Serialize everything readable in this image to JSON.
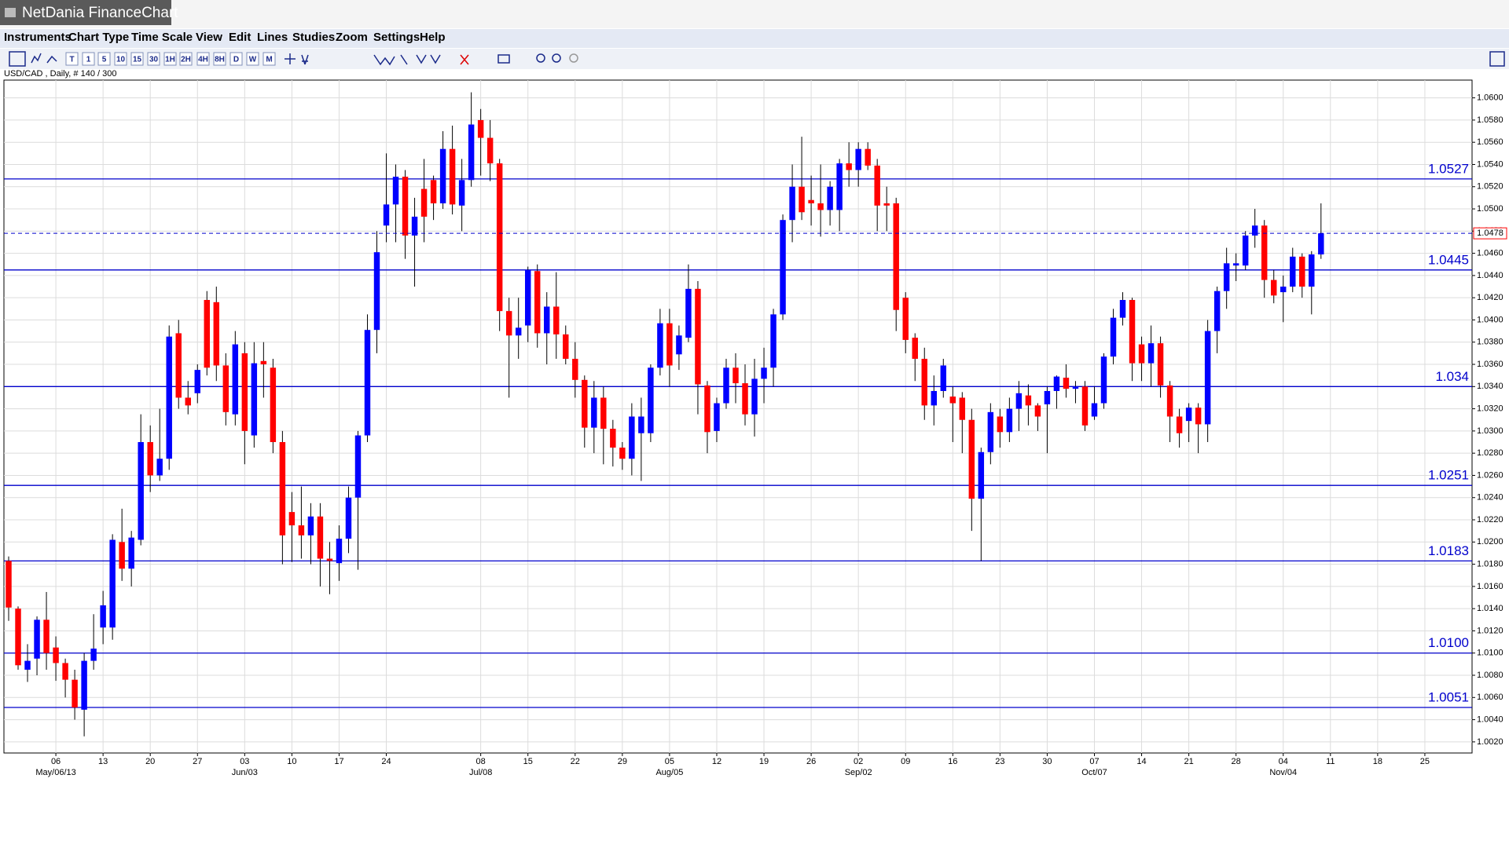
{
  "window": {
    "title": "NetDania FinanceChart"
  },
  "menu": [
    "Instruments",
    "Chart Type",
    "Time Scale",
    "View",
    "Edit",
    "Lines",
    "Studies",
    "Zoom",
    "Settings",
    "Help"
  ],
  "toolbar": [
    "T",
    "1",
    "5",
    "10",
    "15",
    "30",
    "1H",
    "2H",
    "4H",
    "8H",
    "D",
    "W",
    "M"
  ],
  "chart_data": {
    "type": "candlestick",
    "title": "USD/CAD , Daily, # 140 / 300",
    "up_color": "#0000ff",
    "down_color": "#ff0000",
    "wick_color": "#000000",
    "level_color": "#0000cc",
    "grid": true,
    "open": [
      1.0183,
      1.014,
      1.0085,
      1.0095,
      1.013,
      1.0105,
      1.0091,
      1.0076,
      1.0049,
      1.0093,
      1.0123,
      1.0123,
      1.02,
      1.0176,
      1.0202,
      1.029,
      1.026,
      1.0275,
      1.0388,
      1.033,
      1.0334,
      1.0418,
      1.0416,
      1.0359,
      1.0315,
      1.037,
      1.0296,
      1.0363,
      1.0357,
      1.029,
      1.0227,
      1.0215,
      1.0206,
      1.0223,
      1.0185,
      1.0181,
      1.0203,
      1.024,
      1.0296,
      1.0391,
      1.0485,
      1.0504,
      1.0529,
      1.0476,
      1.0518,
      1.0526,
      1.0505,
      1.0554,
      1.0503,
      1.0526,
      1.058,
      1.0564,
      1.0541,
      1.0408,
      1.0386,
      1.0395,
      1.0444,
      1.0388,
      1.0412,
      1.0387,
      1.0365,
      1.0346,
      1.0303,
      1.033,
      1.0302,
      1.0285,
      1.0275,
      1.0298,
      1.0298,
      1.0357,
      1.0397,
      1.0369,
      1.0384,
      1.0428,
      1.0341,
      1.03,
      1.0325,
      1.0357,
      1.0343,
      1.0315,
      1.0347,
      1.0357,
      1.0405,
      1.049,
      1.052,
      1.0508,
      1.0505,
      1.0499,
      1.0499,
      1.0541,
      1.0535,
      1.0554,
      1.0539,
      1.0505,
      1.0505,
      1.042,
      1.0384,
      1.0365,
      1.0323,
      1.0336,
      1.0331,
      1.033,
      1.031,
      1.0239,
      1.0281,
      1.0313,
      1.0299,
      1.032,
      1.0332,
      1.0323,
      1.0324,
      1.0336,
      1.0348,
      1.0338,
      1.034,
      1.0313,
      1.0325,
      1.0367,
      1.0402,
      1.0418,
      1.0378,
      1.0361,
      1.0379,
      1.0341,
      1.0313,
      1.0309,
      1.0321,
      1.0306,
      1.039,
      1.0426,
      1.0449,
      1.0449,
      1.0476,
      1.0485,
      1.0436,
      1.0425,
      1.043,
      1.0457,
      1.043,
      1.0459
    ],
    "high": [
      1.0187,
      1.0142,
      1.0108,
      1.0133,
      1.0155,
      1.0115,
      1.0095,
      1.0085,
      1.01,
      1.0135,
      1.0156,
      1.0207,
      1.023,
      1.021,
      1.0315,
      1.0305,
      1.032,
      1.0395,
      1.04,
      1.0345,
      1.036,
      1.0426,
      1.043,
      1.037,
      1.039,
      1.038,
      1.038,
      1.038,
      1.0365,
      1.03,
      1.0245,
      1.025,
      1.0235,
      1.0235,
      1.02,
      1.0215,
      1.025,
      1.03,
      1.0405,
      1.048,
      1.055,
      1.054,
      1.0535,
      1.051,
      1.0545,
      1.053,
      1.057,
      1.0575,
      1.0545,
      1.0605,
      1.059,
      1.058,
      1.0545,
      1.042,
      1.042,
      1.0448,
      1.045,
      1.0425,
      1.0443,
      1.0395,
      1.038,
      1.035,
      1.0345,
      1.034,
      1.031,
      1.029,
      1.0325,
      1.033,
      1.036,
      1.041,
      1.041,
      1.0395,
      1.045,
      1.0435,
      1.0345,
      1.033,
      1.0365,
      1.037,
      1.036,
      1.0365,
      1.0375,
      1.041,
      1.0495,
      1.054,
      1.0565,
      1.053,
      1.054,
      1.0525,
      1.0545,
      1.056,
      1.056,
      1.056,
      1.0545,
      1.052,
      1.051,
      1.0425,
      1.0388,
      1.0375,
      1.035,
      1.0365,
      1.034,
      1.0335,
      1.032,
      1.0285,
      1.0325,
      1.032,
      1.033,
      1.0345,
      1.0342,
      1.0325,
      1.034,
      1.035,
      1.036,
      1.0345,
      1.0345,
      1.034,
      1.037,
      1.041,
      1.0425,
      1.042,
      1.0385,
      1.0395,
      1.0385,
      1.0345,
      1.032,
      1.0325,
      1.0325,
      1.04,
      1.043,
      1.0465,
      1.046,
      1.048,
      1.05,
      1.049,
      1.0445,
      1.044,
      1.0465,
      1.046,
      1.0462,
      1.0505
    ],
    "low": [
      1.0129,
      1.0085,
      1.0074,
      1.008,
      1.0085,
      1.0075,
      1.006,
      1.004,
      1.0025,
      1.0085,
      1.0108,
      1.0112,
      1.0165,
      1.016,
      1.0197,
      1.0245,
      1.0255,
      1.0265,
      1.032,
      1.0315,
      1.0325,
      1.035,
      1.0345,
      1.0305,
      1.0305,
      1.027,
      1.0285,
      1.033,
      1.028,
      1.018,
      1.0182,
      1.0185,
      1.018,
      1.016,
      1.0153,
      1.0165,
      1.019,
      1.0175,
      1.029,
      1.037,
      1.047,
      1.047,
      1.0455,
      1.043,
      1.047,
      1.049,
      1.05,
      1.0495,
      1.048,
      1.052,
      1.053,
      1.0525,
      1.039,
      1.033,
      1.0365,
      1.038,
      1.0375,
      1.036,
      1.0365,
      1.036,
      1.033,
      1.0285,
      1.028,
      1.027,
      1.0268,
      1.0265,
      1.026,
      1.0255,
      1.029,
      1.035,
      1.034,
      1.0355,
      1.038,
      1.0315,
      1.028,
      1.029,
      1.032,
      1.0325,
      1.0305,
      1.0295,
      1.0325,
      1.034,
      1.04,
      1.047,
      1.049,
      1.0485,
      1.0475,
      1.0485,
      1.048,
      1.052,
      1.052,
      1.0535,
      1.048,
      1.048,
      1.039,
      1.037,
      1.0345,
      1.031,
      1.0305,
      1.033,
      1.029,
      1.028,
      1.021,
      1.0183,
      1.027,
      1.0285,
      1.029,
      1.03,
      1.0305,
      1.03,
      1.028,
      1.032,
      1.033,
      1.0325,
      1.03,
      1.031,
      1.032,
      1.036,
      1.0395,
      1.0345,
      1.0345,
      1.034,
      1.033,
      1.029,
      1.0285,
      1.029,
      1.028,
      1.029,
      1.037,
      1.041,
      1.0435,
      1.0445,
      1.0465,
      1.042,
      1.0415,
      1.0398,
      1.0425,
      1.042,
      1.0405,
      1.0455
    ],
    "close": [
      1.0141,
      1.0089,
      1.0093,
      1.013,
      1.01,
      1.0091,
      1.0076,
      1.0051,
      1.0093,
      1.0104,
      1.0143,
      1.0202,
      1.0176,
      1.0204,
      1.029,
      1.026,
      1.0275,
      1.0385,
      1.033,
      1.0323,
      1.0355,
      1.0357,
      1.0359,
      1.0317,
      1.0378,
      1.03,
      1.0361,
      1.036,
      1.029,
      1.0206,
      1.0215,
      1.0206,
      1.0223,
      1.0185,
      1.0183,
      1.0203,
      1.024,
      1.0296,
      1.0391,
      1.0461,
      1.0504,
      1.0529,
      1.0476,
      1.0493,
      1.0493,
      1.0505,
      1.0554,
      1.0504,
      1.0526,
      1.0576,
      1.0564,
      1.0541,
      1.0408,
      1.0386,
      1.0393,
      1.0445,
      1.0388,
      1.0412,
      1.0387,
      1.0365,
      1.0346,
      1.0303,
      1.033,
      1.0302,
      1.0285,
      1.0275,
      1.0313,
      1.0313,
      1.0357,
      1.0397,
      1.0359,
      1.0386,
      1.0428,
      1.0342,
      1.0299,
      1.0325,
      1.0357,
      1.0343,
      1.0315,
      1.0347,
      1.0357,
      1.0405,
      1.049,
      1.052,
      1.0497,
      1.0505,
      1.0499,
      1.052,
      1.0541,
      1.0535,
      1.0554,
      1.0539,
      1.0503,
      1.0503,
      1.0409,
      1.0382,
      1.0365,
      1.0323,
      1.0336,
      1.0359,
      1.0325,
      1.031,
      1.0239,
      1.0281,
      1.0317,
      1.0299,
      1.032,
      1.0334,
      1.0323,
      1.0313,
      1.0336,
      1.0349,
      1.0338,
      1.034,
      1.0305,
      1.0325,
      1.0367,
      1.0402,
      1.0418,
      1.0361,
      1.0361,
      1.0379,
      1.0341,
      1.0313,
      1.0298,
      1.0321,
      1.0306,
      1.039,
      1.0426,
      1.0451,
      1.0451,
      1.0476,
      1.0485,
      1.0436,
      1.0422,
      1.043,
      1.0457,
      1.043,
      1.0459,
      1.0478
    ],
    "xlim": [
      -0.5,
      155
    ],
    "ylim": [
      1.001,
      1.0616
    ],
    "xticks": [
      {
        "value": 5,
        "label": "06"
      },
      {
        "value": 10,
        "label": "13"
      },
      {
        "value": 15,
        "label": "20"
      },
      {
        "value": 20,
        "label": "27"
      },
      {
        "value": 25,
        "label": "03"
      },
      {
        "value": 30,
        "label": "10"
      },
      {
        "value": 35,
        "label": "17"
      },
      {
        "value": 40,
        "label": "24"
      },
      {
        "value": 50,
        "label": "08"
      },
      {
        "value": 55,
        "label": "15"
      },
      {
        "value": 60,
        "label": "22"
      },
      {
        "value": 65,
        "label": "29"
      },
      {
        "value": 70,
        "label": "05"
      },
      {
        "value": 75,
        "label": "12"
      },
      {
        "value": 80,
        "label": "19"
      },
      {
        "value": 85,
        "label": "26"
      },
      {
        "value": 90,
        "label": "02"
      },
      {
        "value": 95,
        "label": "09"
      },
      {
        "value": 100,
        "label": "16"
      },
      {
        "value": 105,
        "label": "23"
      },
      {
        "value": 110,
        "label": "30"
      },
      {
        "value": 115,
        "label": "07"
      },
      {
        "value": 120,
        "label": "14"
      },
      {
        "value": 125,
        "label": "21"
      },
      {
        "value": 130,
        "label": "28"
      },
      {
        "value": 135,
        "label": "04"
      },
      {
        "value": 140,
        "label": "11"
      },
      {
        "value": 145,
        "label": "18"
      },
      {
        "value": 150,
        "label": "25"
      }
    ],
    "month_labels": [
      {
        "value": 5,
        "label": "May/06/13"
      },
      {
        "value": 25,
        "label": "Jun/03"
      },
      {
        "value": 50,
        "label": "Jul/08"
      },
      {
        "value": 70,
        "label": "Aug/05"
      },
      {
        "value": 90,
        "label": "Sep/02"
      },
      {
        "value": 115,
        "label": "Oct/07"
      },
      {
        "value": 135,
        "label": "Nov/04"
      }
    ],
    "yticks": [
      {
        "value": 1.002,
        "label": "1.0020"
      },
      {
        "value": 1.004,
        "label": "1.0040"
      },
      {
        "value": 1.006,
        "label": "1.0060"
      },
      {
        "value": 1.008,
        "label": "1.0080"
      },
      {
        "value": 1.01,
        "label": "1.0100"
      },
      {
        "value": 1.012,
        "label": "1.0120"
      },
      {
        "value": 1.014,
        "label": "1.0140"
      },
      {
        "value": 1.016,
        "label": "1.0160"
      },
      {
        "value": 1.018,
        "label": "1.0180"
      },
      {
        "value": 1.02,
        "label": "1.0200"
      },
      {
        "value": 1.022,
        "label": "1.0220"
      },
      {
        "value": 1.024,
        "label": "1.0240"
      },
      {
        "value": 1.026,
        "label": "1.0260"
      },
      {
        "value": 1.028,
        "label": "1.0280"
      },
      {
        "value": 1.03,
        "label": "1.0300"
      },
      {
        "value": 1.032,
        "label": "1.0320"
      },
      {
        "value": 1.034,
        "label": "1.0340"
      },
      {
        "value": 1.036,
        "label": "1.0360"
      },
      {
        "value": 1.038,
        "label": "1.0380"
      },
      {
        "value": 1.04,
        "label": "1.0400"
      },
      {
        "value": 1.042,
        "label": "1.0420"
      },
      {
        "value": 1.044,
        "label": "1.0440"
      },
      {
        "value": 1.046,
        "label": "1.0460"
      },
      {
        "value": 1.048,
        "label": "1.0480"
      },
      {
        "value": 1.05,
        "label": "1.0500"
      },
      {
        "value": 1.052,
        "label": "1.0520"
      },
      {
        "value": 1.054,
        "label": "1.0540"
      },
      {
        "value": 1.056,
        "label": "1.0560"
      },
      {
        "value": 1.058,
        "label": "1.0580"
      },
      {
        "value": 1.06,
        "label": "1.0600"
      }
    ],
    "levels": [
      1.0527,
      1.0445,
      1.034,
      1.0251,
      1.0183,
      {
        "value": 1.01,
        "label": "1.0100"
      },
      1.0051
    ],
    "last_price": 1.0478
  }
}
